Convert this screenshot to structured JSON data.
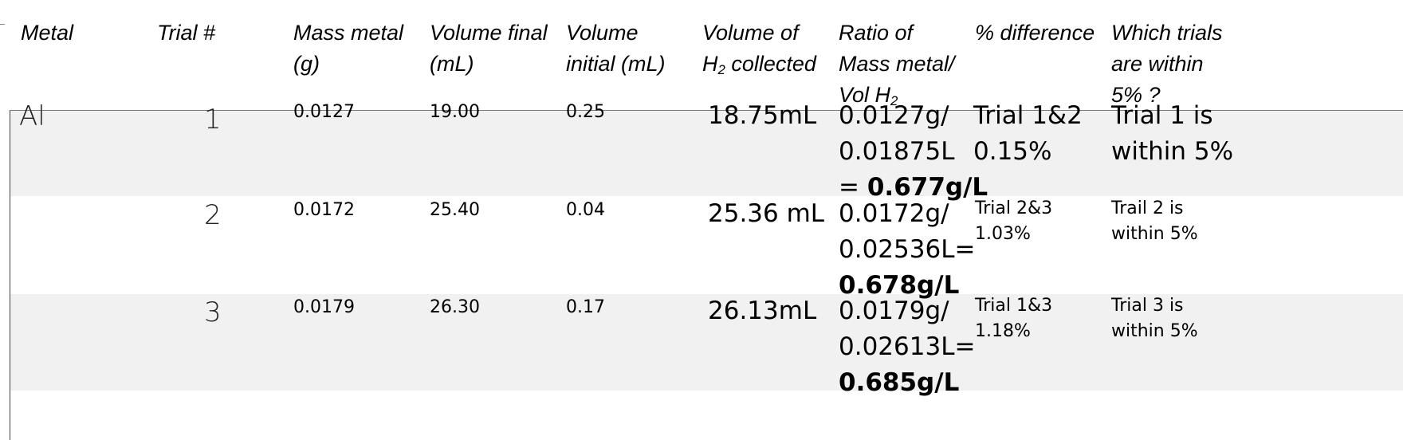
{
  "table": {
    "headers": {
      "metal": "Metal",
      "trial": "Trial #",
      "mass": "Mass metal\n(g)",
      "vfinal": "Volume final\n(mL)",
      "vinitial": "Volume\ninitial (mL)",
      "vcollected_pre": "Volume of\nH",
      "vcollected_sub": "2",
      "vcollected_post": " collected",
      "ratio_pre": "Ratio of\nMass metal/\nVol H",
      "ratio_sub": "2",
      "pctdiff": "% difference",
      "within": "Which trials\nare within\n5% ?"
    },
    "rows": [
      {
        "metal": "Al",
        "trial": "1",
        "mass": "0.0127",
        "vfinal": "19.00",
        "vinitial": "0.25",
        "vcollected": "18.75mL",
        "ratio_a": " 0.0127g/\n0.01875L\n= ",
        "ratio_b": "0.677g/L",
        "pctdiff": " Trial 1&2\n0.15%",
        "within": " Trial 1 is\nwithin 5%"
      },
      {
        "metal": "",
        "trial": "2",
        "mass": "0.0172",
        "vfinal": "25.40",
        "vinitial": "0.04",
        "vcollected": "25.36 mL",
        "ratio_a": " 0.0172g/\n0.02536L=\n",
        "ratio_b": "0.678g/L",
        "pctdiff": "Trial 2&3\n1.03%",
        "within": "Trail 2 is\nwithin 5%"
      },
      {
        "metal": "",
        "trial": "3",
        "mass": "0.0179",
        "vfinal": "26.30",
        "vinitial": "0.17",
        "vcollected": "26.13mL",
        "ratio_a": " 0.0179g/\n0.02613L=\n",
        "ratio_b": "0.685g/L",
        "pctdiff": "Trial 1&3\n1.18%",
        "within": "Trial 3 is\nwithin 5%"
      }
    ]
  }
}
